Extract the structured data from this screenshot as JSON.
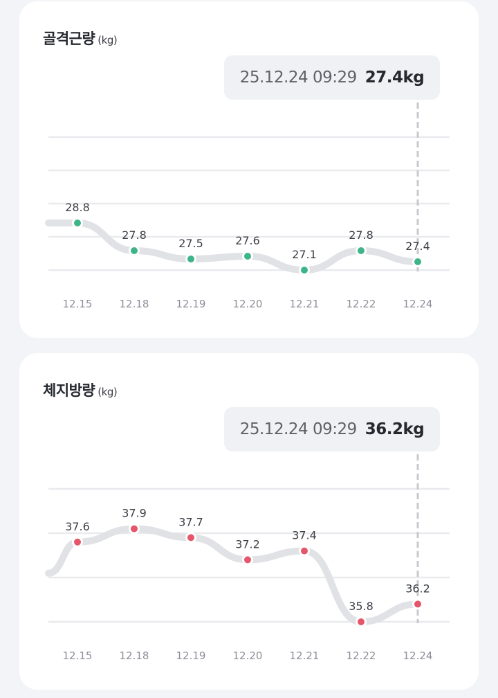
{
  "chart_data": [
    {
      "type": "line",
      "title": "골격근량",
      "unit": "(kg)",
      "tooltip": {
        "datetime": "25.12.24 09:29",
        "value": "27.4kg"
      },
      "categories": [
        "12.15",
        "12.18",
        "12.19",
        "12.20",
        "12.21",
        "12.22",
        "12.24"
      ],
      "values": [
        28.8,
        27.8,
        27.5,
        27.6,
        27.1,
        27.8,
        27.4
      ],
      "value_labels": [
        "28.8",
        "27.8",
        "27.5",
        "27.6",
        "27.1",
        "27.8",
        "27.4"
      ],
      "ylim": [
        27.1,
        29.5
      ],
      "grid": true,
      "color": "#3eb489"
    },
    {
      "type": "line",
      "title": "체지방량",
      "unit": "(kg)",
      "tooltip": {
        "datetime": "25.12.24 09:29",
        "value": "36.2kg"
      },
      "categories": [
        "12.15",
        "12.18",
        "12.19",
        "12.20",
        "12.21",
        "12.22",
        "12.24"
      ],
      "values": [
        37.6,
        37.9,
        37.7,
        37.2,
        37.4,
        35.8,
        36.2
      ],
      "value_labels": [
        "37.6",
        "37.9",
        "37.7",
        "37.2",
        "37.4",
        "35.8",
        "36.2"
      ],
      "ylim": [
        35.8,
        38.8
      ],
      "grid": true,
      "color": "#e5566a"
    }
  ]
}
